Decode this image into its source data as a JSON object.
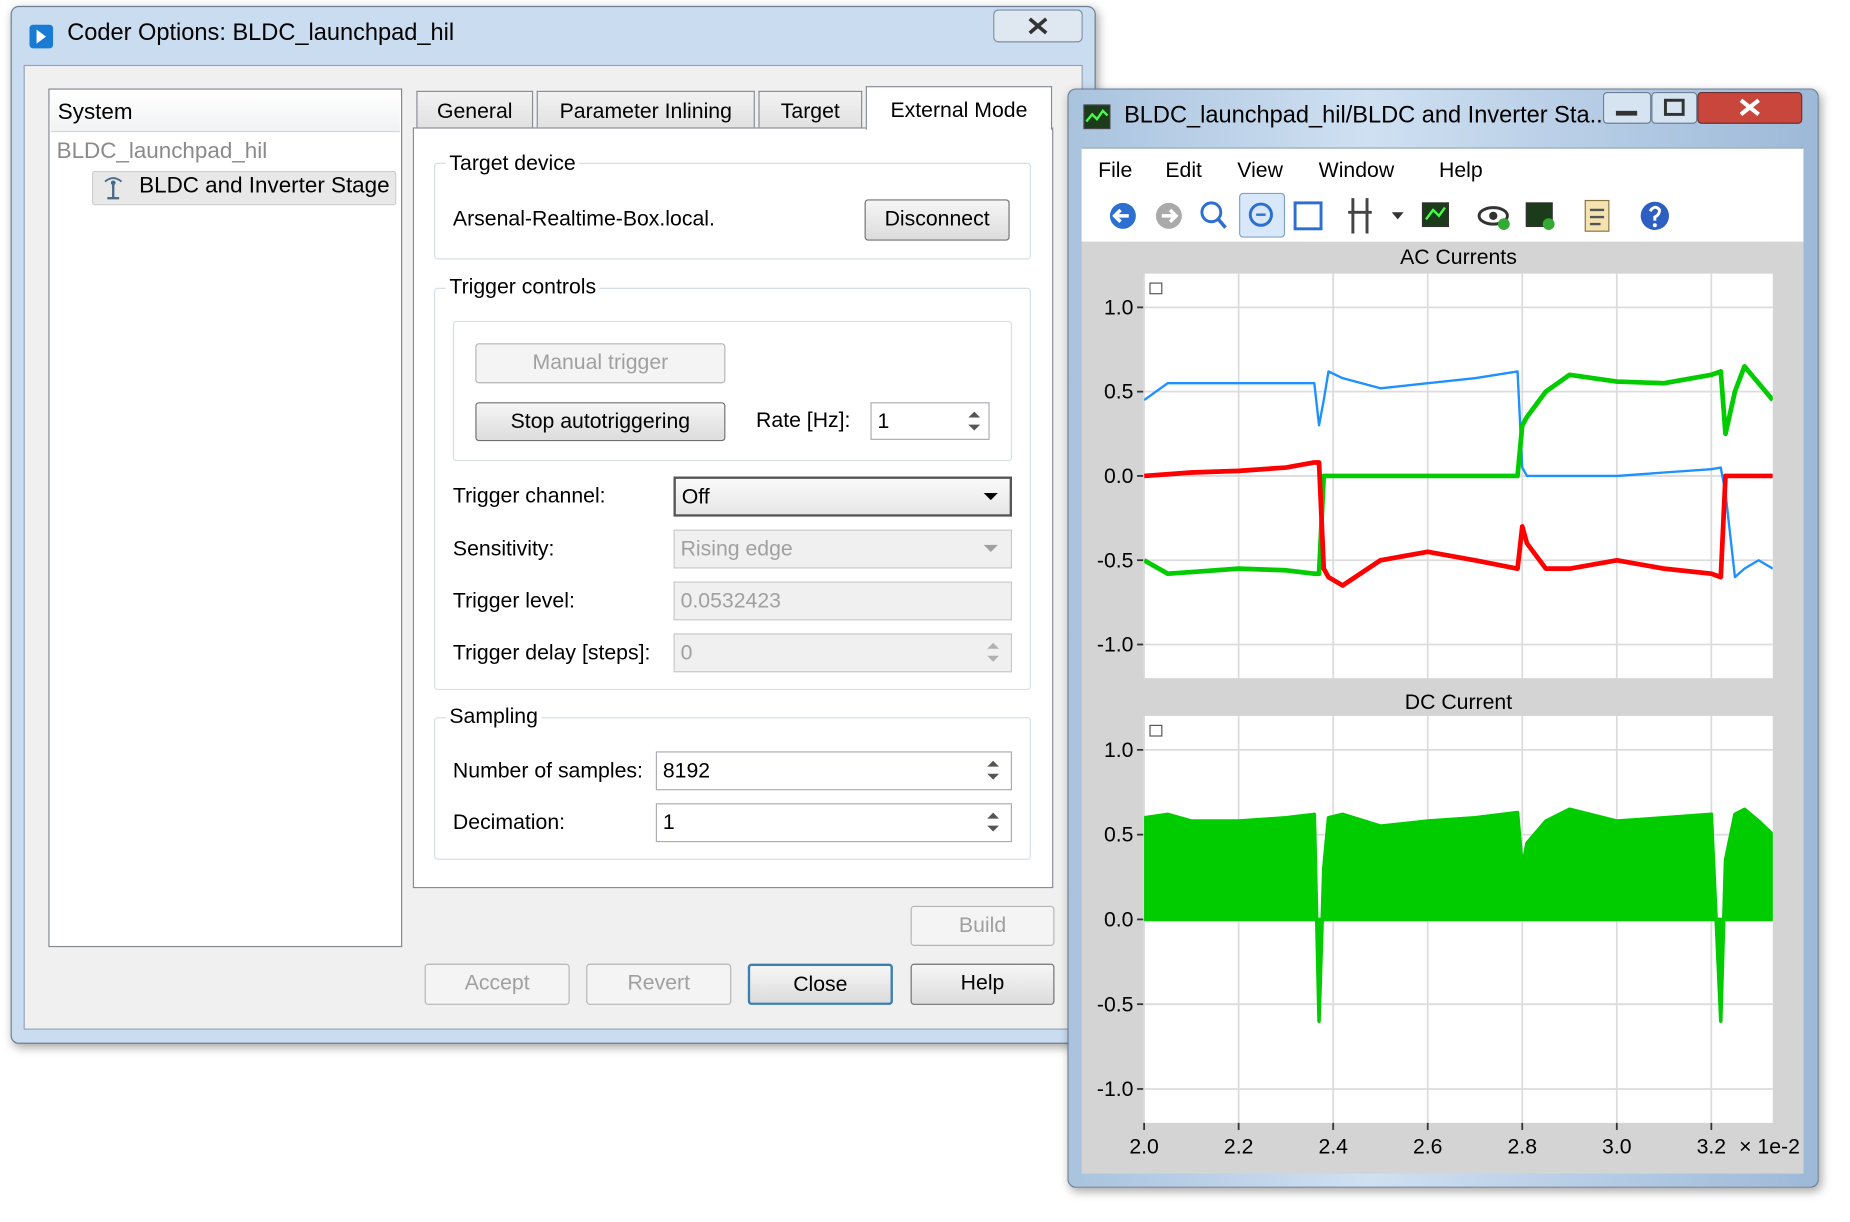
{
  "coder_dialog": {
    "title": "Coder Options: BLDC_launchpad_hil",
    "tree": {
      "header": "System",
      "root": "BLDC_launchpad_hil",
      "child": "BLDC and Inverter Stage"
    },
    "tabs": [
      "General",
      "Parameter Inlining",
      "Target",
      "External Mode"
    ],
    "target_device": {
      "legend": "Target device",
      "host": "Arsenal-Realtime-Box.local.",
      "button": "Disconnect"
    },
    "trigger_controls": {
      "legend": "Trigger controls",
      "manual_trigger": "Manual trigger",
      "stop_autotriggering": "Stop autotriggering",
      "rate_label": "Rate [Hz]:",
      "rate_value": "1",
      "channel_label": "Trigger channel:",
      "channel_value": "Off",
      "sensitivity_label": "Sensitivity:",
      "sensitivity_value": "Rising edge",
      "level_label": "Trigger level:",
      "level_value": "0.0532423",
      "delay_label": "Trigger delay [steps]:",
      "delay_value": "0"
    },
    "sampling": {
      "legend": "Sampling",
      "samples_label": "Number of samples:",
      "samples_value": "8192",
      "decimation_label": "Decimation:",
      "decimation_value": "1"
    },
    "buttons": {
      "build": "Build",
      "accept": "Accept",
      "revert": "Revert",
      "close": "Close",
      "help": "Help"
    }
  },
  "scope_window": {
    "title": "BLDC_launchpad_hil/BLDC and Inverter Sta...",
    "menu": [
      "File",
      "Edit",
      "View",
      "Window",
      "Help"
    ]
  },
  "chart_data": [
    {
      "type": "line",
      "title": "AC Currents",
      "x": [
        2.0,
        2.05,
        2.1,
        2.2,
        2.3,
        2.36,
        2.37,
        2.38,
        2.39,
        2.42,
        2.5,
        2.6,
        2.7,
        2.79,
        2.8,
        2.81,
        2.85,
        2.9,
        3.0,
        3.1,
        3.2,
        3.22,
        3.23,
        3.25,
        3.27,
        3.3,
        3.33
      ],
      "series": [
        {
          "color": "#1e90ff",
          "values": [
            0.45,
            0.55,
            0.55,
            0.55,
            0.55,
            0.55,
            0.3,
            0.45,
            0.62,
            0.58,
            0.52,
            0.55,
            0.58,
            0.62,
            0.05,
            0,
            0,
            0,
            0,
            0.02,
            0.04,
            0.05,
            -0.1,
            -0.6,
            -0.55,
            -0.5,
            -0.55
          ]
        },
        {
          "color": "#00cc00",
          "values": [
            -0.5,
            -0.58,
            -0.57,
            -0.55,
            -0.56,
            -0.58,
            -0.58,
            0,
            0,
            0,
            0,
            0,
            0,
            0,
            0.3,
            0.35,
            0.5,
            0.6,
            0.56,
            0.55,
            0.6,
            0.62,
            0.25,
            0.5,
            0.65,
            0.55,
            0.45
          ]
        },
        {
          "color": "#ff0000",
          "values": [
            0,
            0.01,
            0.02,
            0.03,
            0.05,
            0.08,
            0.08,
            -0.55,
            -0.6,
            -0.65,
            -0.5,
            -0.45,
            -0.5,
            -0.55,
            -0.3,
            -0.4,
            -0.55,
            -0.55,
            -0.5,
            -0.55,
            -0.58,
            -0.6,
            0,
            0,
            0,
            0,
            0
          ]
        }
      ],
      "xlim": [
        2.0,
        3.33
      ],
      "ylim": [
        -1.2,
        1.2
      ],
      "xticks": [
        2.0,
        2.2,
        2.4,
        2.6,
        2.8,
        3.0,
        3.2
      ],
      "yticks": [
        {
          "value": 1.0,
          "label": "1.0"
        },
        {
          "value": 0.5,
          "label": "0.5"
        },
        {
          "value": 0.0,
          "label": "0.0"
        },
        {
          "value": -0.5,
          "label": "-0.5"
        },
        {
          "value": -1.0,
          "label": "-1.0"
        }
      ],
      "grid": true
    },
    {
      "type": "area",
      "title": "DC Current",
      "x": [
        2.0,
        2.05,
        2.1,
        2.2,
        2.3,
        2.36,
        2.37,
        2.38,
        2.39,
        2.42,
        2.5,
        2.6,
        2.7,
        2.79,
        2.8,
        2.81,
        2.85,
        2.9,
        3.0,
        3.1,
        3.2,
        3.22,
        3.23,
        3.25,
        3.27,
        3.3,
        3.33
      ],
      "series": [
        {
          "color": "#00cc00",
          "values": [
            0.6,
            0.62,
            0.58,
            0.58,
            0.6,
            0.62,
            -0.6,
            0.3,
            0.6,
            0.62,
            0.55,
            0.58,
            0.6,
            0.63,
            0.3,
            0.45,
            0.58,
            0.65,
            0.58,
            0.6,
            0.62,
            -0.6,
            0.35,
            0.62,
            0.65,
            0.58,
            0.5
          ]
        }
      ],
      "xlim": [
        2.0,
        3.33
      ],
      "ylim": [
        -1.2,
        1.2
      ],
      "xticks": [
        {
          "value": 2.0,
          "label": "2.0"
        },
        {
          "value": 2.2,
          "label": "2.2"
        },
        {
          "value": 2.4,
          "label": "2.4"
        },
        {
          "value": 2.6,
          "label": "2.6"
        },
        {
          "value": 2.8,
          "label": "2.8"
        },
        {
          "value": 3.0,
          "label": "3.0"
        },
        {
          "value": 3.2,
          "label": "3.2"
        }
      ],
      "yticks": [
        {
          "value": 1.0,
          "label": "1.0"
        },
        {
          "value": 0.5,
          "label": "0.5"
        },
        {
          "value": 0.0,
          "label": "0.0"
        },
        {
          "value": -0.5,
          "label": "-0.5"
        },
        {
          "value": -1.0,
          "label": "-1.0"
        }
      ],
      "x_label": "× 1e-2",
      "grid": true
    }
  ]
}
